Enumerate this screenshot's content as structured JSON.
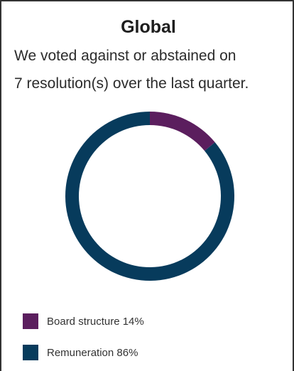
{
  "title": "Global",
  "subtitle_lines": [
    "We voted against or abstained on",
    "7 resolution(s) over the last quarter."
  ],
  "chart_data": {
    "type": "pie",
    "style": "donut",
    "categories": [
      "Board structure",
      "Remuneration"
    ],
    "values": [
      14,
      86
    ],
    "unit": "%",
    "colors": [
      "#5b1e5e",
      "#073b5c"
    ],
    "legend": [
      {
        "label": "Board structure 14%",
        "color": "#5b1e5e"
      },
      {
        "label": "Remuneration 86%",
        "color": "#073b5c"
      }
    ],
    "legend_position": "bottom-left"
  }
}
